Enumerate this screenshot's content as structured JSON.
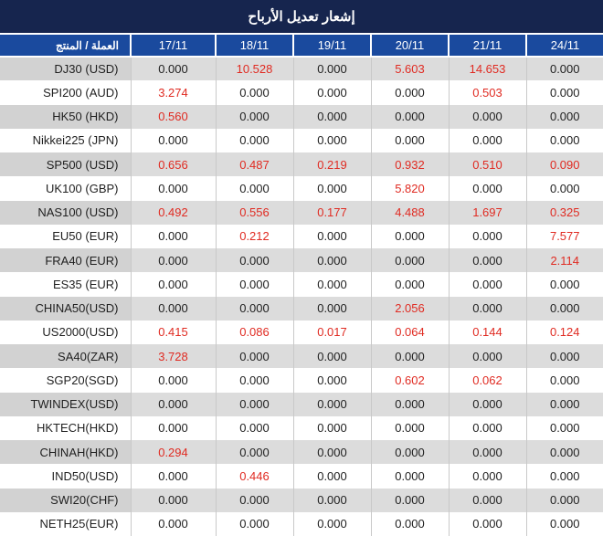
{
  "title": "إشعار تعديل الأرباح",
  "table": {
    "product_header": "العملة / المنتج",
    "dates": [
      "17/11",
      "18/11",
      "19/11",
      "20/11",
      "21/11",
      "24/11"
    ],
    "rows": [
      {
        "product": "DJ30 (USD)",
        "values": [
          "0.000",
          "10.528",
          "0.000",
          "5.603",
          "14.653",
          "0.000"
        ],
        "red": [
          0,
          1,
          0,
          1,
          1,
          0
        ]
      },
      {
        "product": "SPI200 (AUD)",
        "values": [
          "3.274",
          "0.000",
          "0.000",
          "0.000",
          "0.503",
          "0.000"
        ],
        "red": [
          1,
          0,
          0,
          0,
          1,
          0
        ]
      },
      {
        "product": "HK50 (HKD)",
        "values": [
          "0.560",
          "0.000",
          "0.000",
          "0.000",
          "0.000",
          "0.000"
        ],
        "red": [
          1,
          0,
          0,
          0,
          0,
          0
        ]
      },
      {
        "product": "Nikkei225 (JPN)",
        "values": [
          "0.000",
          "0.000",
          "0.000",
          "0.000",
          "0.000",
          "0.000"
        ],
        "red": [
          0,
          0,
          0,
          0,
          0,
          0
        ]
      },
      {
        "product": "SP500 (USD)",
        "values": [
          "0.656",
          "0.487",
          "0.219",
          "0.932",
          "0.510",
          "0.090"
        ],
        "red": [
          1,
          1,
          1,
          1,
          1,
          1
        ]
      },
      {
        "product": "UK100 (GBP)",
        "values": [
          "0.000",
          "0.000",
          "0.000",
          "5.820",
          "0.000",
          "0.000"
        ],
        "red": [
          0,
          0,
          0,
          1,
          0,
          0
        ]
      },
      {
        "product": "NAS100 (USD)",
        "values": [
          "0.492",
          "0.556",
          "0.177",
          "4.488",
          "1.697",
          "0.325"
        ],
        "red": [
          1,
          1,
          1,
          1,
          1,
          1
        ]
      },
      {
        "product": "EU50 (EUR)",
        "values": [
          "0.000",
          "0.212",
          "0.000",
          "0.000",
          "0.000",
          "7.577"
        ],
        "red": [
          0,
          1,
          0,
          0,
          0,
          1
        ]
      },
      {
        "product": "FRA40 (EUR)",
        "values": [
          "0.000",
          "0.000",
          "0.000",
          "0.000",
          "0.000",
          "2.114"
        ],
        "red": [
          0,
          0,
          0,
          0,
          0,
          1
        ]
      },
      {
        "product": "ES35 (EUR)",
        "values": [
          "0.000",
          "0.000",
          "0.000",
          "0.000",
          "0.000",
          "0.000"
        ],
        "red": [
          0,
          0,
          0,
          0,
          0,
          0
        ]
      },
      {
        "product": "CHINA50(USD)",
        "values": [
          "0.000",
          "0.000",
          "0.000",
          "2.056",
          "0.000",
          "0.000"
        ],
        "red": [
          0,
          0,
          0,
          1,
          0,
          0
        ]
      },
      {
        "product": "US2000(USD)",
        "values": [
          "0.415",
          "0.086",
          "0.017",
          "0.064",
          "0.144",
          "0.124"
        ],
        "red": [
          1,
          1,
          1,
          1,
          1,
          1
        ]
      },
      {
        "product": "SA40(ZAR)",
        "values": [
          "3.728",
          "0.000",
          "0.000",
          "0.000",
          "0.000",
          "0.000"
        ],
        "red": [
          1,
          0,
          0,
          0,
          0,
          0
        ]
      },
      {
        "product": "SGP20(SGD)",
        "values": [
          "0.000",
          "0.000",
          "0.000",
          "0.602",
          "0.062",
          "0.000"
        ],
        "red": [
          0,
          0,
          0,
          1,
          1,
          0
        ]
      },
      {
        "product": "TWINDEX(USD)",
        "values": [
          "0.000",
          "0.000",
          "0.000",
          "0.000",
          "0.000",
          "0.000"
        ],
        "red": [
          0,
          0,
          0,
          0,
          0,
          0
        ]
      },
      {
        "product": "HKTECH(HKD)",
        "values": [
          "0.000",
          "0.000",
          "0.000",
          "0.000",
          "0.000",
          "0.000"
        ],
        "red": [
          0,
          0,
          0,
          0,
          0,
          0
        ]
      },
      {
        "product": "CHINAH(HKD)",
        "values": [
          "0.294",
          "0.000",
          "0.000",
          "0.000",
          "0.000",
          "0.000"
        ],
        "red": [
          1,
          0,
          0,
          0,
          0,
          0
        ]
      },
      {
        "product": "IND50(USD)",
        "values": [
          "0.000",
          "0.446",
          "0.000",
          "0.000",
          "0.000",
          "0.000"
        ],
        "red": [
          0,
          1,
          0,
          0,
          0,
          0
        ]
      },
      {
        "product": "SWI20(CHF)",
        "values": [
          "0.000",
          "0.000",
          "0.000",
          "0.000",
          "0.000",
          "0.000"
        ],
        "red": [
          0,
          0,
          0,
          0,
          0,
          0
        ]
      },
      {
        "product": "NETH25(EUR)",
        "values": [
          "0.000",
          "0.000",
          "0.000",
          "0.000",
          "0.000",
          "0.000"
        ],
        "red": [
          0,
          0,
          0,
          0,
          0,
          0
        ]
      }
    ]
  },
  "colors": {
    "title_bg": "#16254e",
    "header_bg": "#1a4a9e",
    "row_alt_bg": "#dcdcdc",
    "row_alt_label_bg": "#d2d2d2",
    "value_red": "#e02b22",
    "value_black": "#1f1f1f"
  }
}
